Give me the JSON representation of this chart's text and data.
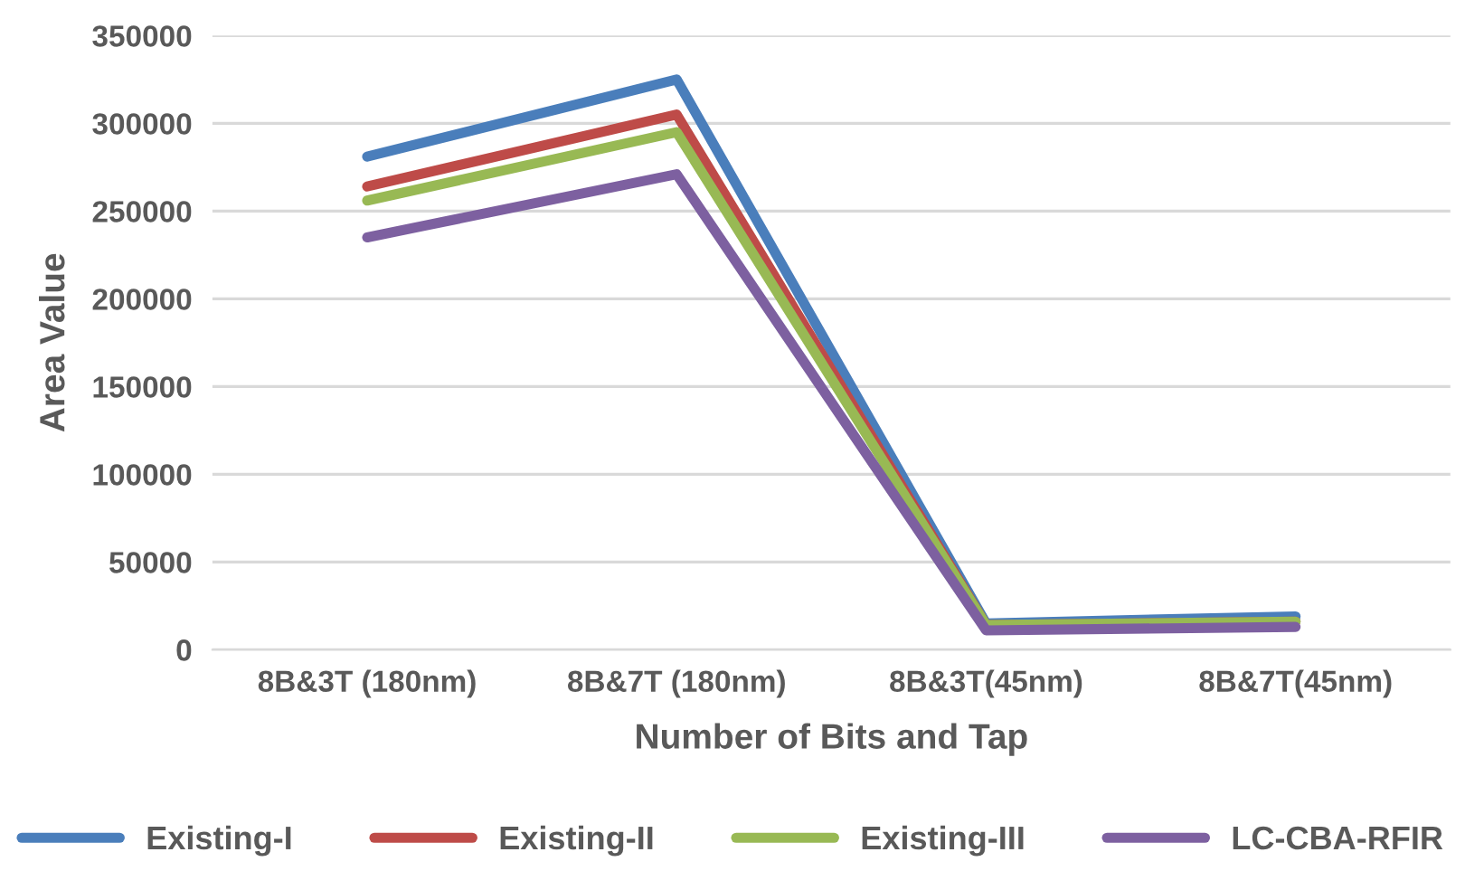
{
  "chart_data": {
    "type": "line",
    "xlabel": "Number of Bits and Tap",
    "ylabel": "Area Value",
    "categories": [
      "8B&3T (180nm)",
      "8B&7T (180nm)",
      "8B&3T(45nm)",
      "8B&7T(45nm)"
    ],
    "series": [
      {
        "name": "Existing-I",
        "color": "#4a7ebb",
        "values": [
          281000,
          325000,
          15000,
          19000
        ]
      },
      {
        "name": "Existing-II",
        "color": "#be4b48",
        "values": [
          264000,
          305000,
          14000,
          16000
        ]
      },
      {
        "name": "Existing-III",
        "color": "#98b954",
        "values": [
          256000,
          295000,
          14000,
          16000
        ]
      },
      {
        "name": "LC-CBA-RFIR",
        "color": "#7d60a0",
        "values": [
          235000,
          271000,
          11000,
          13000
        ]
      }
    ],
    "ylim": [
      0,
      350000
    ],
    "yticks": [
      0,
      50000,
      100000,
      150000,
      200000,
      250000,
      300000,
      350000
    ],
    "grid": "y",
    "legend": "bottom",
    "marker": "none",
    "line_style": "solid"
  }
}
